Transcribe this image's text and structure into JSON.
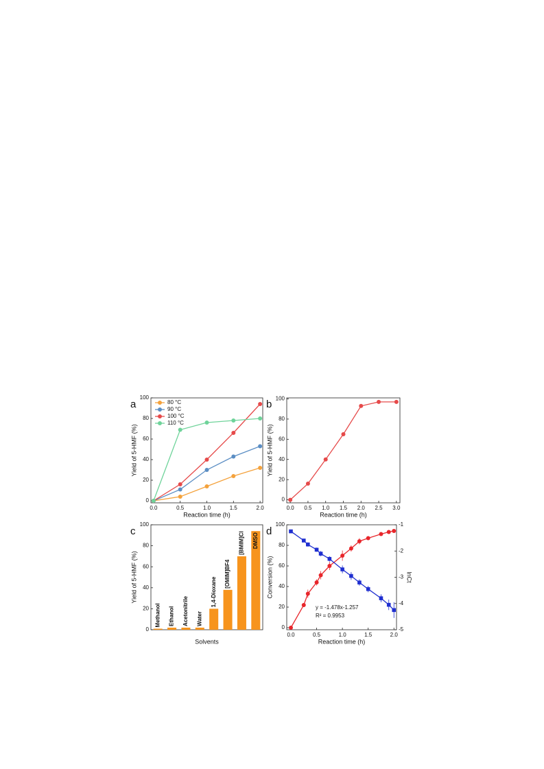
{
  "chart_data": [
    {
      "type": "line",
      "label": "a",
      "xlabel": "Reaction time (h)",
      "ylabel": "Yield of 5-HMF (%)",
      "xlim": [
        -0.05,
        2.05
      ],
      "ylim": [
        -2,
        100
      ],
      "xticks": [
        {
          "value": 0,
          "label": "0.0"
        },
        {
          "value": 0.5,
          "label": "0.5"
        },
        {
          "value": 1,
          "label": "1.0"
        },
        {
          "value": 1.5,
          "label": "1.5"
        },
        {
          "value": 2,
          "label": "2.0"
        }
      ],
      "yticks": [
        0,
        20,
        40,
        60,
        80,
        100
      ],
      "legend": "upper left",
      "x": [
        0,
        0.5,
        1,
        1.5,
        2
      ],
      "series": [
        {
          "name": "80 °C",
          "color": "#f4a23c",
          "values": [
            0,
            4,
            14,
            24,
            32
          ]
        },
        {
          "name": "90 °C",
          "color": "#5b8ec4",
          "values": [
            0,
            11,
            30,
            43,
            53
          ]
        },
        {
          "name": "100 °C",
          "color": "#e64a4a",
          "values": [
            0,
            16,
            40,
            66,
            94
          ]
        },
        {
          "name": "110 °C",
          "color": "#6fd39a",
          "values": [
            0,
            69,
            76,
            78,
            80
          ]
        }
      ]
    },
    {
      "type": "line",
      "label": "b",
      "xlabel": "Reaction time (h)",
      "ylabel": "Yield of 5-HMF (%)",
      "xlim": [
        -0.1,
        3.1
      ],
      "ylim": [
        -3,
        101
      ],
      "xticks": [
        {
          "value": 0,
          "label": "0.0"
        },
        {
          "value": 0.5,
          "label": "0.5"
        },
        {
          "value": 1,
          "label": "1.0"
        },
        {
          "value": 1.5,
          "label": "1.5"
        },
        {
          "value": 2,
          "label": "2.0"
        },
        {
          "value": 2.5,
          "label": "2.5"
        },
        {
          "value": 3,
          "label": "3.0"
        }
      ],
      "yticks": [
        0,
        20,
        40,
        60,
        80,
        100
      ],
      "x": [
        0,
        0.5,
        1,
        1.5,
        2,
        2.5,
        3
      ],
      "series": [
        {
          "color": "#e64a4a",
          "values": [
            0,
            16,
            40,
            65,
            93,
            97,
            97
          ]
        }
      ]
    },
    {
      "type": "bar",
      "label": "c",
      "xlabel": "Solvents",
      "ylabel": "Yield of 5-HMF (%)",
      "ylim": [
        0,
        100
      ],
      "yticks": [
        0,
        20,
        40,
        60,
        80,
        100
      ],
      "color": "#f7941d",
      "categories": [
        "Methanol",
        "Ethanol",
        "Acetonitrile",
        "Water",
        "1,4-Dioxane",
        "[OMIM]BF4",
        "[BMIM]Cl",
        "DMSO"
      ],
      "values": [
        1,
        2,
        2,
        2,
        20,
        38,
        70,
        94
      ]
    },
    {
      "type": "line",
      "label": "d",
      "xlabel": "Reaction time (h)",
      "ylabel": "Conversion (%)",
      "y2label": "lnCt",
      "xlim": [
        -0.08,
        2.05
      ],
      "ylim": [
        -2,
        100
      ],
      "y2lim": [
        -5,
        -1
      ],
      "xticks": [
        {
          "value": 0,
          "label": "0.0"
        },
        {
          "value": 0.5,
          "label": "0.5"
        },
        {
          "value": 1,
          "label": "1.0"
        },
        {
          "value": 1.5,
          "label": "1.5"
        },
        {
          "value": 2,
          "label": "2.0"
        }
      ],
      "yticks": [
        0,
        20,
        40,
        60,
        80,
        100
      ],
      "y2ticks": [
        -5,
        -4,
        -3,
        -2,
        -1
      ],
      "x": [
        0,
        0.25,
        0.33,
        0.5,
        0.58,
        0.75,
        1,
        1.17,
        1.33,
        1.5,
        1.75,
        1.9,
        2
      ],
      "series": [
        {
          "color": "#e8262b",
          "values": [
            0,
            22,
            33,
            44,
            51,
            60,
            70,
            77,
            84,
            87,
            91,
            93,
            94
          ],
          "errors": [
            1,
            2,
            4,
            3,
            4,
            4,
            5,
            3,
            3,
            2,
            1,
            1,
            1
          ]
        },
        {
          "color": "#1f2fd0",
          "axis": "y2",
          "values": [
            -1.25,
            -1.6,
            -1.75,
            -1.95,
            -2.1,
            -2.3,
            -2.7,
            -2.95,
            -3.2,
            -3.45,
            -3.8,
            -4.05,
            -4.25
          ],
          "errors": [
            0.05,
            0.05,
            0.08,
            0.08,
            0.1,
            0.1,
            0.15,
            0.15,
            0.12,
            0.12,
            0.15,
            0.2,
            0.3
          ]
        }
      ],
      "annotations": [
        "y = -1.478x-1.257",
        "R² = 0.9953"
      ]
    }
  ]
}
